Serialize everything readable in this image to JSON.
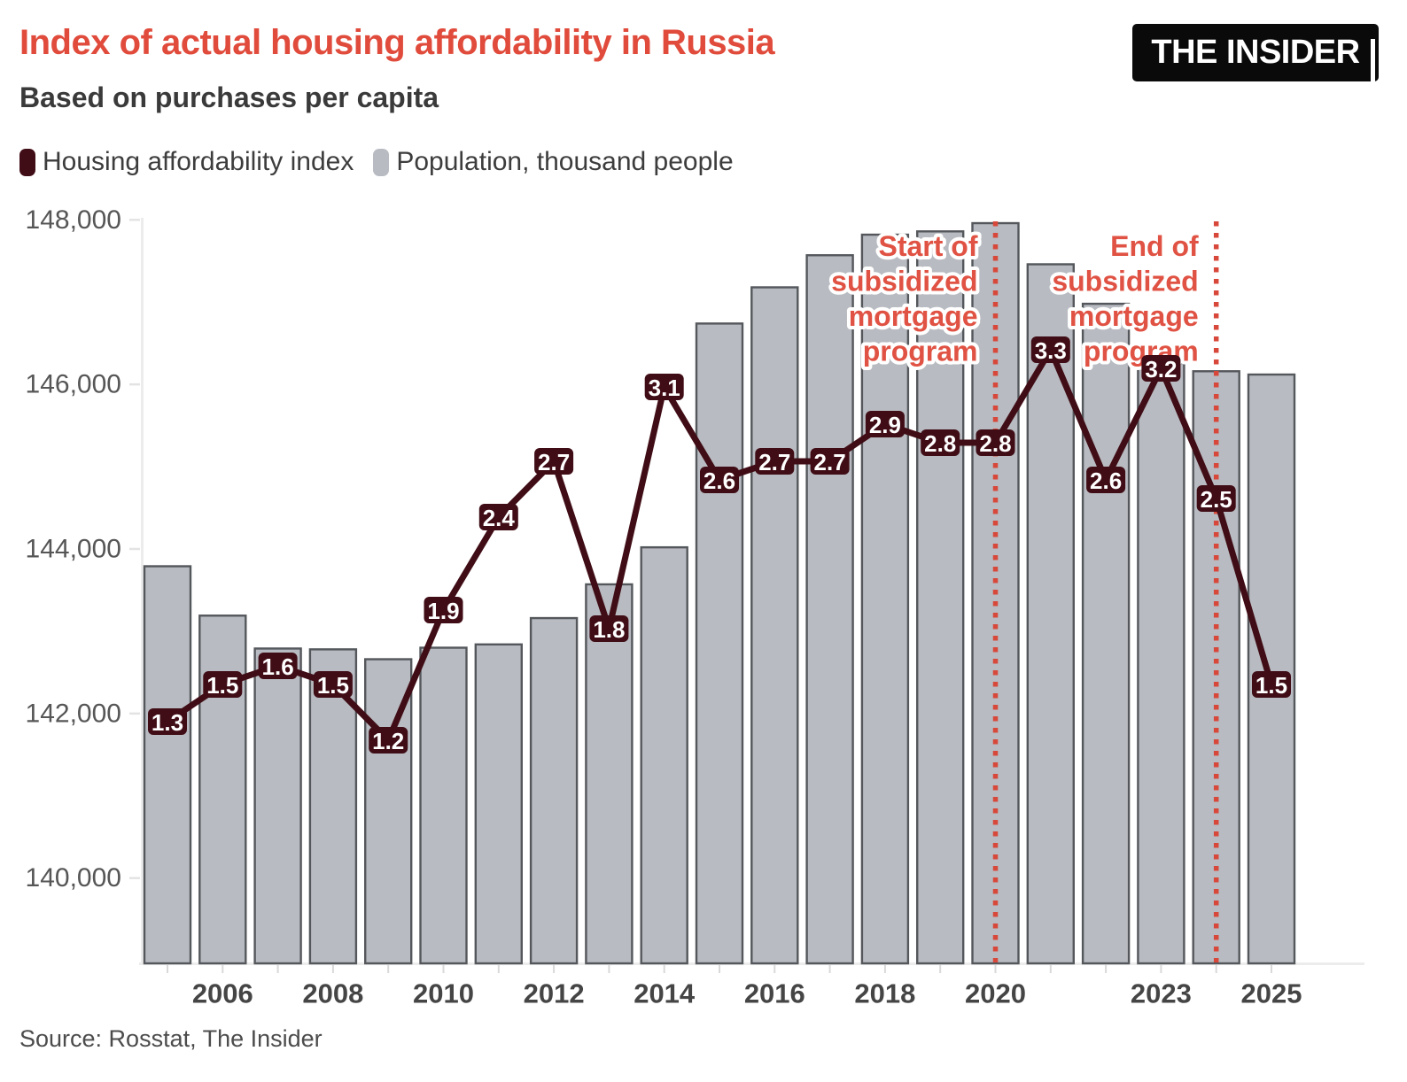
{
  "header": {
    "title": "Index of actual housing affordability in Russia",
    "subtitle": "Based on purchases per capita",
    "logo": "THE INSIDER"
  },
  "legend": [
    {
      "label": "Housing affordability index",
      "color": "#400d16"
    },
    {
      "label": "Population, thousand people",
      "color": "#b8bbc1"
    }
  ],
  "source": "Source: Rosstat, The Insider",
  "colors": {
    "title_red": "#e04b3c",
    "annotation_red": "#e05243",
    "annotation_halo": "#ffffff",
    "dotted_red": "#d7483a",
    "maroon": "#400d16",
    "bar_fill": "#b8bbc1",
    "bar_stroke": "#54575b",
    "axis_line": "#ececec",
    "y_tick": "#e3e3e3",
    "x_tick": "#d9d9d9",
    "y_label": "#565656",
    "x_label": "#454545",
    "badge_text": "#ffffff"
  },
  "chart_data": {
    "type": "bar+line combo",
    "categories": [
      2005,
      2006,
      2007,
      2008,
      2009,
      2010,
      2011,
      2012,
      2013,
      2014,
      2015,
      2016,
      2017,
      2018,
      2019,
      2020,
      2021,
      2022,
      2023,
      2024,
      2025
    ],
    "series": [
      {
        "name": "Housing affordability index",
        "type": "line",
        "axis": "index (hidden right scale 0-4)",
        "values": [
          1.3,
          1.5,
          1.6,
          1.5,
          1.2,
          1.9,
          2.4,
          2.7,
          1.8,
          3.1,
          2.6,
          2.7,
          2.7,
          2.9,
          2.8,
          2.8,
          3.3,
          2.6,
          3.2,
          2.5,
          1.5
        ]
      },
      {
        "name": "Population, thousand people",
        "type": "bar",
        "axis": "population",
        "values": [
          143790,
          143190,
          142790,
          142780,
          142660,
          142800,
          142840,
          143160,
          143570,
          144020,
          146740,
          147180,
          147570,
          147820,
          147860,
          147960,
          147460,
          146980,
          146260,
          146160,
          146120
        ]
      }
    ],
    "y_axis": {
      "tick_values": [
        140000,
        142000,
        144000,
        146000,
        148000
      ],
      "tick_labels": [
        "140,000",
        "142,000",
        "144,000",
        "146,000",
        "148,000"
      ],
      "range": [
        138960,
        148000
      ],
      "grid": false
    },
    "index_axis": {
      "range": [
        0,
        4
      ],
      "visible": false
    },
    "x_axis": {
      "label_years": [
        2006,
        2008,
        2010,
        2012,
        2014,
        2016,
        2018,
        2020,
        2023,
        2025
      ],
      "tick_every_year": true
    },
    "events": [
      {
        "year": 2020,
        "lines": [
          "Start of",
          "subsidized",
          "mortgage",
          "program"
        ]
      },
      {
        "year": 2024,
        "lines": [
          "End of",
          "subsidized",
          "mortgage",
          "program"
        ]
      }
    ],
    "legend_position": "top-left",
    "point_labels": "each line point carries a dark badge with its value"
  }
}
